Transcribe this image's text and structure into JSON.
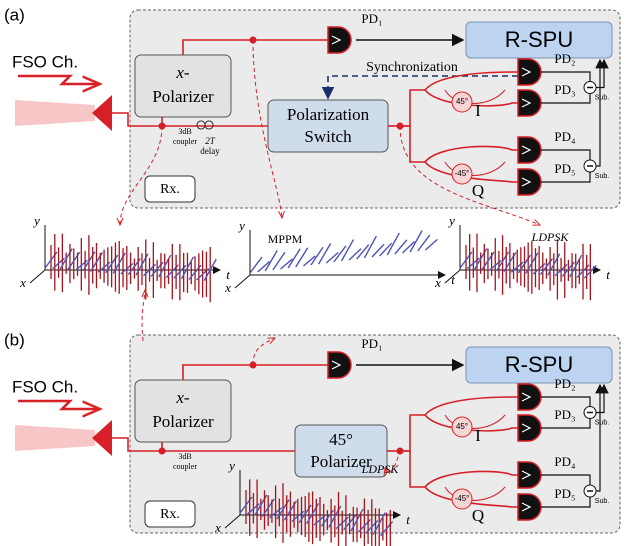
{
  "panels": [
    {
      "label": "(a)",
      "channel": "FSO Ch.",
      "polarizer": [
        "x-",
        "Polarizer"
      ],
      "pd1": "PD₁",
      "rspu": "R-SPU",
      "sync": "Synchronization",
      "switch": [
        "Polarization",
        "Switch"
      ],
      "coupler": [
        "3dB",
        "coupler"
      ],
      "delay": [
        "2T",
        "delay"
      ],
      "detectors": [
        "PD₂",
        "PD₃",
        "PD₄",
        "PD₅"
      ],
      "phases": [
        "45°",
        "-45°"
      ],
      "arms": [
        "I",
        "Q"
      ],
      "sub": [
        "Sub.",
        "Sub."
      ],
      "rx": "Rx."
    },
    {
      "label": "(b)",
      "channel": "FSO Ch.",
      "polarizer": [
        "x-",
        "Polarizer"
      ],
      "pd1": "PD₁",
      "rspu": "R-SPU",
      "switch": [
        "45°",
        "Polarizer"
      ],
      "coupler": [
        "3dB",
        "coupler"
      ],
      "detectors": [
        "PD₂",
        "PD₃",
        "PD₄",
        "PD₅"
      ],
      "phases": [
        "45°",
        "-45°"
      ],
      "arms": [
        "I",
        "Q"
      ],
      "sub": [
        "Sub.",
        "Sub."
      ],
      "rx": "Rx."
    }
  ],
  "plots": [
    {
      "axes": [
        "y",
        "x",
        "t"
      ]
    },
    {
      "axes": [
        "y",
        "x",
        "t"
      ],
      "label": "MPPM"
    },
    {
      "axes": [
        "y",
        "x",
        "t"
      ],
      "label": "LDPSK"
    },
    {
      "axes": [
        "y",
        "x",
        "t"
      ],
      "label": "LDPSK"
    }
  ]
}
